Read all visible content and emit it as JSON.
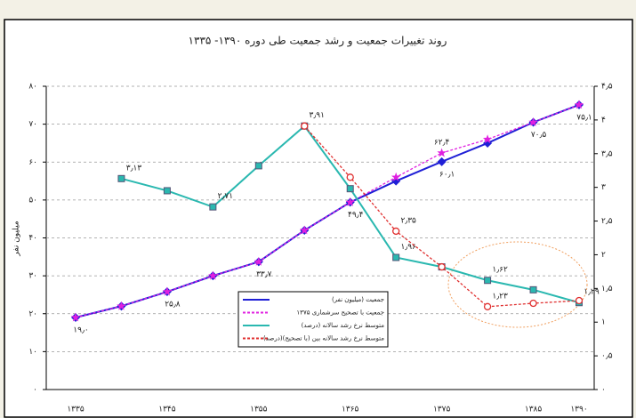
{
  "chart_data": {
    "type": "line",
    "title": "روند تغییرات جمعیت و رشد جمعیت طی دوره ۱۳۹۰- ۱۳۳۵",
    "y_label": "میلیون نفر",
    "categories": [
      "۱۳۳۵",
      null,
      "۱۳۴۵",
      null,
      "۱۳۵۵",
      null,
      "۱۳۶۵",
      null,
      "۱۳۷۵",
      null,
      "۱۳۸۵",
      "۱۳۹۰"
    ],
    "ylim": [
      0,
      80
    ],
    "yticks": [
      {
        "value": 0,
        "label": "۰"
      },
      {
        "value": 10,
        "label": "۱۰"
      },
      {
        "value": 20,
        "label": "۲۰"
      },
      {
        "value": 30,
        "label": "۳۰"
      },
      {
        "value": 40,
        "label": "۴۰"
      },
      {
        "value": 50,
        "label": "۵۰"
      },
      {
        "value": 60,
        "label": "۶۰"
      },
      {
        "value": 70,
        "label": "۷۰"
      },
      {
        "value": 80,
        "label": "۸۰"
      }
    ],
    "y2lim": [
      0,
      4.5
    ],
    "y2ticks": [
      {
        "value": 0,
        "label": "۰"
      },
      {
        "value": 0.5,
        "label": "۰٫۵"
      },
      {
        "value": 1,
        "label": "۱"
      },
      {
        "value": 1.5,
        "label": "۱٫۵"
      },
      {
        "value": 2,
        "label": "۲"
      },
      {
        "value": 2.5,
        "label": "۲٫۵"
      },
      {
        "value": 3,
        "label": "۳"
      },
      {
        "value": 3.5,
        "label": "۳٫۵"
      },
      {
        "value": 4,
        "label": "۴"
      },
      {
        "value": 4.5,
        "label": "۴٫۵"
      }
    ],
    "grid": true,
    "series": [
      {
        "name": "جمعیت (میلیون نفر)",
        "color": "#1f1fd6",
        "marker": "diamond",
        "values": [
          19.0,
          22,
          25.8,
          30,
          33.7,
          42,
          49.4,
          55,
          60.1,
          65,
          70.5,
          75.1
        ],
        "value_labels": [
          "۱۹٫۰",
          null,
          "۲۵٫۸",
          null,
          "۳۳٫۷",
          null,
          "۴۹٫۴",
          null,
          "۶۰٫۱",
          null,
          "۷۰٫۵",
          "۷۵٫۱"
        ]
      },
      {
        "name": "جمعیت با تصحیح سرشماری ۱۳۷۵",
        "color": "#e020e0",
        "marker": "star",
        "dashed": true,
        "values": [
          19.0,
          22,
          25.8,
          30,
          33.7,
          42,
          49.4,
          56,
          62.4,
          66,
          70.5,
          75.1
        ],
        "value_labels": [
          null,
          null,
          null,
          null,
          null,
          null,
          null,
          null,
          "۶۲٫۴",
          null,
          null,
          null
        ]
      },
      {
        "name": "متوسط نرخ رشد سالانه (درصد)",
        "color": "#2ab8b0",
        "marker": "square",
        "axis": "y2",
        "values": [
          null,
          3.13,
          2.95,
          2.71,
          3.32,
          3.91,
          2.98,
          1.96,
          1.82,
          1.62,
          1.48,
          1.29
        ],
        "value_labels": [
          null,
          "۳٫۱۳",
          null,
          "۲٫۷۱",
          null,
          "۳٫۹۱",
          null,
          "۱٫۹۶",
          null,
          "۱٫۶۲",
          null,
          "۱٫۲۹"
        ]
      },
      {
        "name": "متوسط نرخ رشد سالانه بین (با تصحیح)(درصد)",
        "color": "#e03030",
        "marker": "circle",
        "dashed": true,
        "axis": "y2",
        "values": [
          null,
          null,
          null,
          null,
          null,
          3.91,
          3.15,
          2.35,
          1.82,
          1.23,
          1.28,
          1.32
        ],
        "value_labels": [
          null,
          null,
          null,
          null,
          null,
          null,
          null,
          "۲٫۳۵",
          null,
          "۱٫۲۳",
          null,
          null
        ]
      }
    ]
  }
}
